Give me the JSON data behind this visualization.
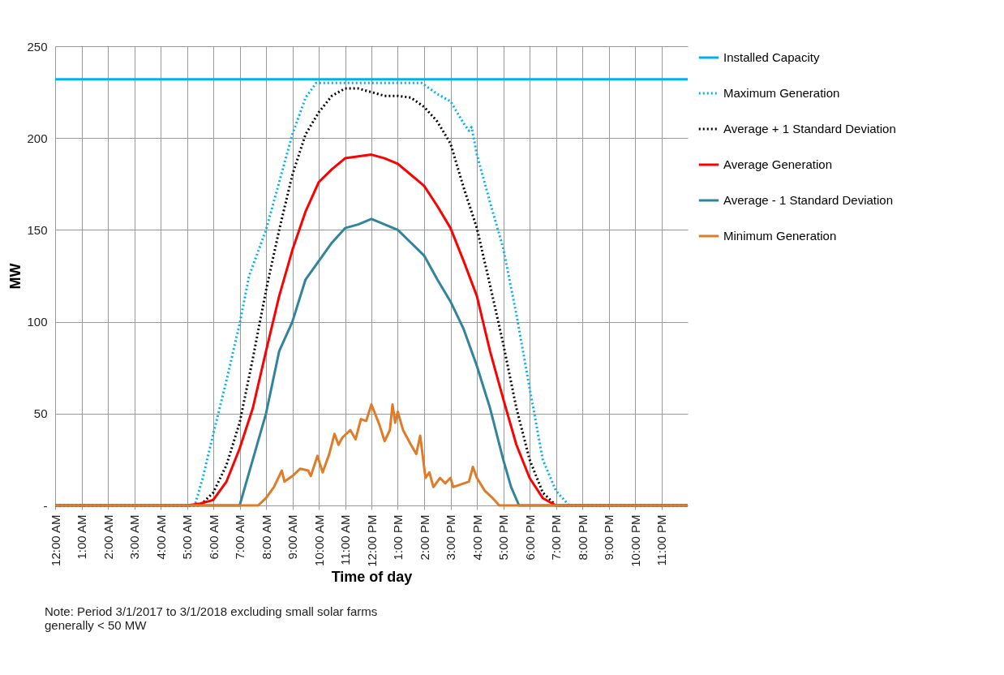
{
  "chart_data": {
    "type": "line",
    "xlabel": "Time of day",
    "ylabel": "MW",
    "annotations": [
      "Note: Period 3/1/2017 to 3/1/2018 excluding small solar farms generally < 50 MW"
    ],
    "xlim": [
      0,
      24
    ],
    "xticks": [
      {
        "value": 0,
        "label": "12:00 AM"
      },
      {
        "value": 1,
        "label": "1:00 AM"
      },
      {
        "value": 2,
        "label": "2:00 AM"
      },
      {
        "value": 3,
        "label": "3:00 AM"
      },
      {
        "value": 4,
        "label": "4:00 AM"
      },
      {
        "value": 5,
        "label": "5:00 AM"
      },
      {
        "value": 6,
        "label": "6:00 AM"
      },
      {
        "value": 7,
        "label": "7:00 AM"
      },
      {
        "value": 8,
        "label": "8:00 AM"
      },
      {
        "value": 9,
        "label": "9:00 AM"
      },
      {
        "value": 10,
        "label": "10:00 AM"
      },
      {
        "value": 11,
        "label": "11:00 AM"
      },
      {
        "value": 12,
        "label": "12:00 PM"
      },
      {
        "value": 13,
        "label": "1:00 PM"
      },
      {
        "value": 14,
        "label": "2:00 PM"
      },
      {
        "value": 15,
        "label": "3:00 PM"
      },
      {
        "value": 16,
        "label": "4:00 PM"
      },
      {
        "value": 17,
        "label": "5:00 PM"
      },
      {
        "value": 18,
        "label": "6:00 PM"
      },
      {
        "value": 19,
        "label": "7:00 PM"
      },
      {
        "value": 20,
        "label": "8:00 PM"
      },
      {
        "value": 21,
        "label": "9:00 PM"
      },
      {
        "value": 22,
        "label": "10:00 PM"
      },
      {
        "value": 23,
        "label": "11:00 PM"
      }
    ],
    "ylim": [
      0,
      250
    ],
    "yticks": [
      {
        "value": 0,
        "label": "-"
      },
      50,
      100,
      150,
      200,
      250
    ],
    "grid": true,
    "legend": "right",
    "series": [
      {
        "name": "Installed Capacity",
        "color": "#00b0f0",
        "line_style": "solid",
        "x": [
          0,
          6,
          12,
          18,
          24
        ],
        "values": [
          232,
          232,
          232,
          232,
          232
        ]
      },
      {
        "name": "Maximum Generation",
        "color": "#00b0f0",
        "line_style": "dotted",
        "x": [
          0,
          5,
          5.3,
          5.6,
          6,
          6.5,
          7,
          7.36,
          8,
          8.5,
          9,
          9.5,
          9.9,
          10,
          11,
          12,
          13,
          13.9,
          14.5,
          15,
          15.5,
          15.7,
          15.8,
          16,
          16.5,
          17,
          17.5,
          18,
          18.5,
          19,
          19.5,
          24
        ],
        "values": [
          0,
          0,
          0,
          15,
          39,
          68,
          99,
          125,
          150,
          176,
          202,
          222,
          230,
          230,
          230,
          230,
          230,
          230,
          224,
          220,
          208,
          204,
          206,
          191,
          165,
          140,
          104,
          64,
          25,
          8,
          0,
          0
        ]
      },
      {
        "name": "Average + 1 Standard Deviation",
        "color": "#000000",
        "line_style": "dotted",
        "x": [
          0,
          5,
          5.5,
          6,
          6.5,
          7,
          7.5,
          8,
          8.5,
          9,
          9.5,
          10,
          10.5,
          11,
          11.5,
          12,
          12.5,
          13,
          13.5,
          14,
          14.5,
          15,
          15.5,
          16,
          16.5,
          17,
          17.5,
          18,
          18.5,
          19,
          24
        ],
        "values": [
          0,
          0,
          0,
          7,
          22,
          45,
          80,
          117,
          150,
          180,
          202,
          214,
          223,
          227,
          227,
          225,
          223,
          223,
          222,
          217,
          209,
          197,
          173,
          151,
          120,
          88,
          53,
          25,
          7,
          0,
          0
        ]
      },
      {
        "name": "Average Generation",
        "color": "#ff0000",
        "line_style": "solid",
        "x": [
          0,
          5,
          5.5,
          6,
          6.5,
          7,
          7.5,
          8,
          8.5,
          9,
          9.5,
          10,
          10.5,
          11,
          11.5,
          12,
          12.5,
          13,
          13.5,
          14,
          14.5,
          15,
          15.5,
          16,
          16.5,
          17,
          17.5,
          18,
          18.5,
          19,
          24
        ],
        "values": [
          0,
          0,
          1,
          3,
          13,
          31,
          53,
          84,
          114,
          139,
          160,
          176,
          183,
          189,
          190,
          191,
          189,
          186,
          180,
          174,
          163,
          151,
          133,
          114,
          84,
          58,
          33,
          15,
          4,
          0,
          0
        ]
      },
      {
        "name": "Average - 1 Standard Deviation",
        "color": "#31849b",
        "line_style": "solid",
        "x": [
          0,
          7,
          7.5,
          8,
          8.5,
          9,
          9.5,
          10,
          10.5,
          11,
          11.5,
          12,
          12.5,
          13,
          13.5,
          14,
          14.5,
          15,
          15.5,
          16,
          16.5,
          17,
          17.3,
          17.6,
          24
        ],
        "values": [
          0,
          0,
          25,
          50,
          84,
          100,
          123,
          133,
          143,
          151,
          153,
          156,
          153,
          150,
          143,
          136,
          123,
          111,
          96,
          76,
          53,
          25,
          10,
          0,
          0
        ]
      },
      {
        "name": "Minimum Generation",
        "color": "#e07b28",
        "line_style": "solid",
        "x": [
          0,
          7.7,
          8,
          8.3,
          8.6,
          8.7,
          9,
          9.3,
          9.6,
          9.7,
          9.95,
          10.15,
          10.4,
          10.6,
          10.75,
          10.9,
          11.2,
          11.4,
          11.6,
          11.8,
          12,
          12.3,
          12.5,
          12.7,
          12.8,
          12.9,
          13,
          13.2,
          13.5,
          13.7,
          13.85,
          14.05,
          14.2,
          14.35,
          14.6,
          14.8,
          15,
          15.1,
          15.5,
          15.7,
          15.85,
          16,
          16.3,
          16.6,
          16.85,
          24
        ],
        "values": [
          0,
          0,
          4,
          10,
          19,
          13,
          16,
          20,
          19,
          16,
          27,
          18,
          28,
          39,
          33,
          37,
          41,
          36,
          47,
          46,
          55,
          44,
          35,
          41,
          55,
          45,
          51,
          41,
          33,
          28,
          38,
          15,
          18,
          10,
          15,
          12,
          15,
          10,
          12,
          13,
          21,
          15,
          8,
          4,
          0,
          0
        ]
      }
    ]
  }
}
